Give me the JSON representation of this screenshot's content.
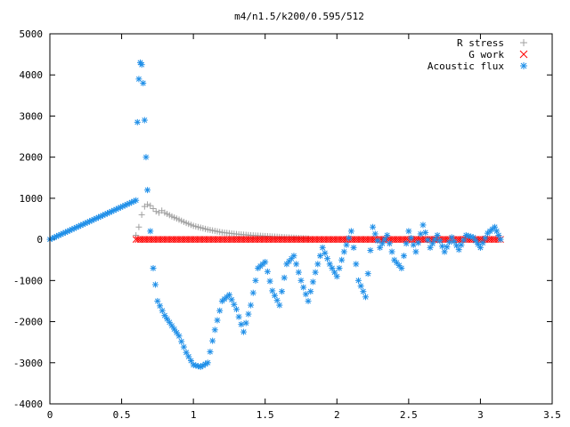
{
  "chart_data": {
    "type": "scatter",
    "title": "m4/n1.5/k200/0.595/512",
    "xlabel": "",
    "ylabel": "",
    "xlim": [
      0,
      3.5
    ],
    "ylim": [
      -4000,
      5000
    ],
    "xticks": [
      0,
      0.5,
      1,
      1.5,
      2,
      2.5,
      3,
      3.5
    ],
    "xtick_labels": [
      "0",
      "0.5",
      "1",
      "1.5",
      "2",
      "2.5",
      "3",
      "3.5"
    ],
    "yticks": [
      -4000,
      -3000,
      -2000,
      -1000,
      0,
      1000,
      2000,
      3000,
      4000,
      5000
    ],
    "ytick_labels": [
      "-4000",
      "-3000",
      "-2000",
      "-1000",
      "0",
      "1000",
      "2000",
      "3000",
      "4000",
      "5000"
    ],
    "grid": false,
    "legend_position": "top-right",
    "series": [
      {
        "name": "R stress",
        "color": "#a0a0a0",
        "marker": "plus",
        "x": [
          0.6,
          0.62,
          0.64,
          0.66,
          0.68,
          0.7,
          0.72,
          0.74,
          0.76,
          0.78,
          0.8,
          0.85,
          0.9,
          0.95,
          1.0,
          1.1,
          1.2,
          1.3,
          1.4,
          1.5,
          1.6,
          1.7,
          1.8
        ],
        "y": [
          100,
          300,
          600,
          800,
          850,
          820,
          750,
          680,
          650,
          700,
          650,
          560,
          480,
          400,
          330,
          240,
          170,
          130,
          100,
          80,
          60,
          40,
          20
        ]
      },
      {
        "name": "G work",
        "color": "#ff0000",
        "marker": "cross",
        "x": [
          0.6,
          0.8,
          1.0,
          1.2,
          1.4,
          1.6,
          1.8,
          2.0,
          2.2,
          2.4,
          2.6,
          2.8,
          3.0,
          3.14
        ],
        "y": [
          0,
          0,
          0,
          0,
          0,
          0,
          0,
          0,
          0,
          0,
          0,
          0,
          0,
          0
        ]
      },
      {
        "name": "Acoustic flux",
        "color": "#1f8fe8",
        "marker": "star",
        "x": [
          0.0,
          0.6,
          0.61,
          0.62,
          0.63,
          0.64,
          0.65,
          0.66,
          0.67,
          0.68,
          0.7,
          0.72,
          0.75,
          0.8,
          0.85,
          0.9,
          0.95,
          1.0,
          1.05,
          1.1,
          1.15,
          1.2,
          1.25,
          1.3,
          1.35,
          1.4,
          1.45,
          1.5,
          1.55,
          1.6,
          1.65,
          1.7,
          1.75,
          1.8,
          1.85,
          1.9,
          1.95,
          2.0,
          2.05,
          2.1,
          2.15,
          2.2,
          2.25,
          2.3,
          2.35,
          2.4,
          2.45,
          2.5,
          2.55,
          2.6,
          2.65,
          2.7,
          2.75,
          2.8,
          2.85,
          2.9,
          2.95,
          3.0,
          3.05,
          3.1,
          3.14
        ],
        "y": [
          0,
          950,
          2850,
          3900,
          4300,
          4250,
          3800,
          2900,
          2000,
          1200,
          200,
          -700,
          -1500,
          -1850,
          -2100,
          -2350,
          -2750,
          -3050,
          -3100,
          -3000,
          -2200,
          -1500,
          -1350,
          -1700,
          -2250,
          -1600,
          -700,
          -550,
          -1250,
          -1600,
          -600,
          -400,
          -1000,
          -1500,
          -800,
          -200,
          -600,
          -900,
          -300,
          200,
          -1000,
          -1400,
          300,
          -200,
          100,
          -500,
          -700,
          200,
          -300,
          350,
          -200,
          100,
          -300,
          50,
          -250,
          100,
          50,
          -200,
          150,
          300,
          0
        ]
      }
    ]
  }
}
